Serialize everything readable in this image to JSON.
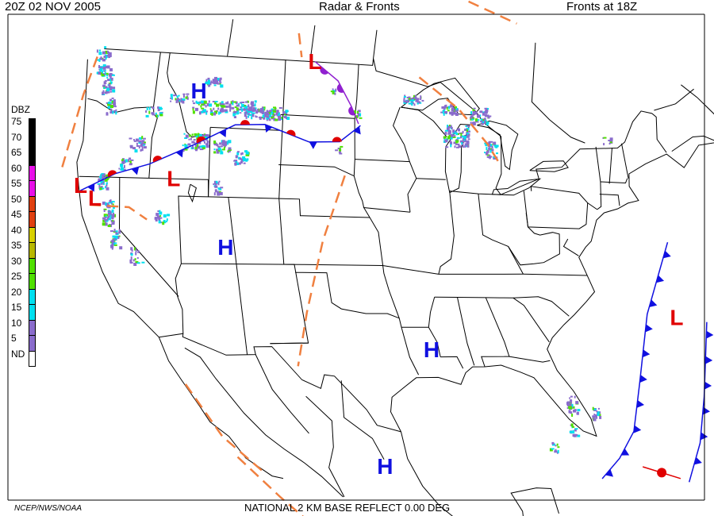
{
  "header": {
    "timestamp": "20Z  02 NOV  2005",
    "title": "Radar & Fronts",
    "fronts_time": "Fronts at 18Z"
  },
  "footer": {
    "product": "NATIONAL 2 KM BASE REFLECT 0.00 DEG",
    "credit": "NCEP/NWS/NOAA"
  },
  "legend": {
    "title": "DBZ",
    "items": [
      {
        "label": "75",
        "color": "#000000"
      },
      {
        "label": "70",
        "color": "#000000"
      },
      {
        "label": "65",
        "color": "#000000"
      },
      {
        "label": "60",
        "color": "#e80ee8"
      },
      {
        "label": "55",
        "color": "#e80ee8"
      },
      {
        "label": "50",
        "color": "#e04010"
      },
      {
        "label": "45",
        "color": "#e04010"
      },
      {
        "label": "40",
        "color": "#d8d000"
      },
      {
        "label": "35",
        "color": "#b8b800"
      },
      {
        "label": "30",
        "color": "#50e000"
      },
      {
        "label": "25",
        "color": "#50e000"
      },
      {
        "label": "20",
        "color": "#00e0f0"
      },
      {
        "label": "15",
        "color": "#00e0f0"
      },
      {
        "label": "10",
        "color": "#8a6ccc"
      },
      {
        "label": "5",
        "color": "#8a6ccc"
      },
      {
        "label": "ND",
        "color": "#ffffff"
      }
    ]
  },
  "pressure_centers": [
    {
      "type": "H",
      "lat": 47.0,
      "lon": -112.5
    },
    {
      "type": "L",
      "lat": 49.0,
      "lon": -101.0
    },
    {
      "type": "L",
      "lat": 41.5,
      "lon": -124.0
    },
    {
      "type": "L",
      "lat": 40.8,
      "lon": -122.5
    },
    {
      "type": "L",
      "lat": 42.0,
      "lon": -114.5
    },
    {
      "type": "H",
      "lat": 38.0,
      "lon": -109.5
    },
    {
      "type": "H",
      "lat": 31.5,
      "lon": -91.8
    },
    {
      "type": "H",
      "lat": 23.5,
      "lon": -100.0
    },
    {
      "type": "L",
      "lat": 33.8,
      "lon": -69.0
    }
  ],
  "colors": {
    "pressure_high": "#1010e0",
    "pressure_low": "#e00000",
    "cold_front": "#1010e0",
    "warm_front": "#e00000",
    "occluded_front": "#9020d0",
    "trough": "#f08040",
    "boundaries": "#000000"
  }
}
